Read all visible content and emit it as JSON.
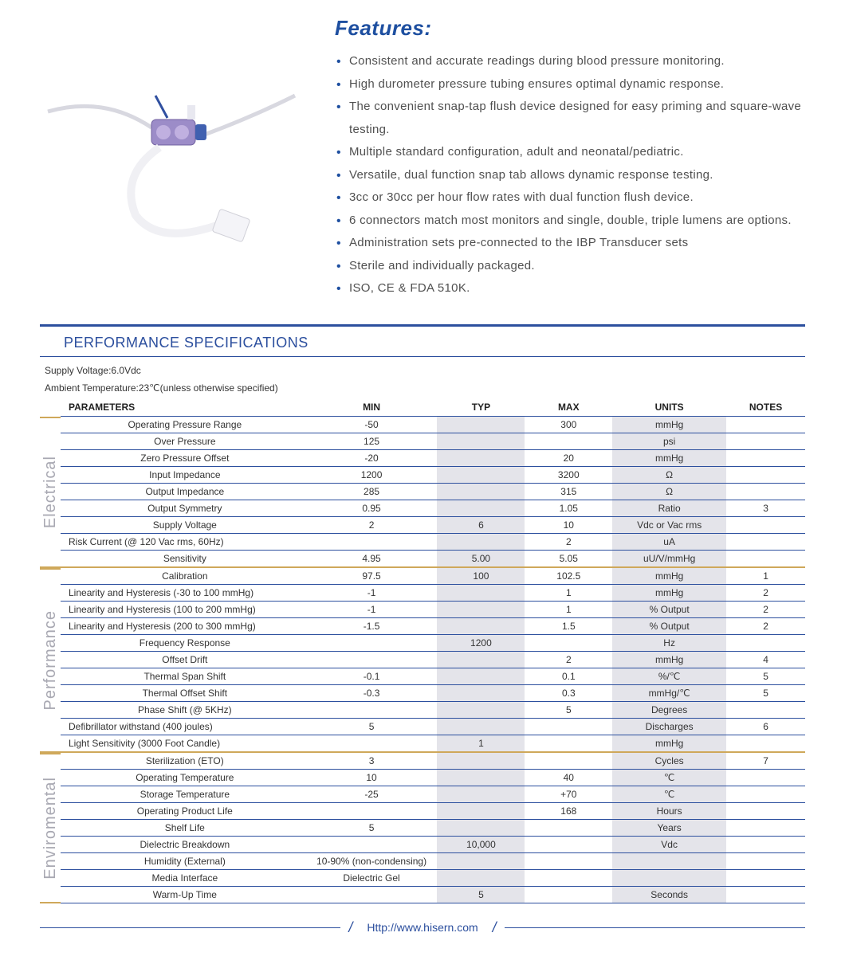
{
  "features": {
    "title": "Features:",
    "items": [
      "Consistent and accurate readings during blood pressure monitoring.",
      "High durometer pressure tubing ensures optimal dynamic response.",
      "The convenient snap-tap flush device designed for easy priming and square-wave testing.",
      "Multiple standard configuration, adult and neonatal/pediatric.",
      "Versatile, dual function snap tab allows dynamic response testing.",
      "3cc or 30cc per hour flow rates with dual function flush device.",
      "6 connectors match most monitors and single, double, triple lumens are options.",
      "Administration sets pre-connected to the IBP Transducer sets",
      "Sterile and individually packaged.",
      "ISO, CE & FDA 510K."
    ]
  },
  "spec": {
    "title": "PERFORMANCE SPECIFICATIONS",
    "meta1": "Supply Voltage:6.0Vdc",
    "meta2": "Ambient Temperature:23℃(unless otherwise specified)",
    "columns": [
      "PARAMETERS",
      "MIN",
      "TYP",
      "MAX",
      "UNITS",
      "NOTES"
    ],
    "groups": [
      {
        "label": "Electrical",
        "rows": [
          {
            "p": "Operating Pressure Range",
            "min": "-50",
            "typ": "",
            "max": "300",
            "u": "mmHg",
            "n": ""
          },
          {
            "p": "Over  Pressure",
            "min": "125",
            "typ": "",
            "max": "",
            "u": "psi",
            "n": ""
          },
          {
            "p": "Zero Pressure Offset",
            "min": "-20",
            "typ": "",
            "max": "20",
            "u": "mmHg",
            "n": ""
          },
          {
            "p": "Input Impedance",
            "min": "1200",
            "typ": "",
            "max": "3200",
            "u": "Ω",
            "n": ""
          },
          {
            "p": "Output Impedance",
            "min": "285",
            "typ": "",
            "max": "315",
            "u": "Ω",
            "n": ""
          },
          {
            "p": "Output Symmetry",
            "min": "0.95",
            "typ": "",
            "max": "1.05",
            "u": "Ratio",
            "n": "3"
          },
          {
            "p": "Supply Voltage",
            "min": "2",
            "typ": "6",
            "max": "10",
            "u": "Vdc or Vac rms",
            "n": ""
          },
          {
            "p": "Risk Current (@ 120 Vac rms, 60Hz)",
            "min": "",
            "typ": "",
            "max": "2",
            "u": "uA",
            "n": "",
            "la": true
          },
          {
            "p": "Sensitivity",
            "min": "4.95",
            "typ": "5.00",
            "max": "5.05",
            "u": "uU/V/mmHg",
            "n": ""
          }
        ]
      },
      {
        "label": "Performance",
        "rows": [
          {
            "p": "Calibration",
            "min": "97.5",
            "typ": "100",
            "max": "102.5",
            "u": "mmHg",
            "n": "1"
          },
          {
            "p": "Linearity and Hysteresis (-30 to 100 mmHg)",
            "min": "-1",
            "typ": "",
            "max": "1",
            "u": "mmHg",
            "n": "2",
            "la": true
          },
          {
            "p": "Linearity and Hysteresis (100 to 200 mmHg)",
            "min": "-1",
            "typ": "",
            "max": "1",
            "u": "% Output",
            "n": "2",
            "la": true
          },
          {
            "p": "Linearity and Hysteresis (200 to 300 mmHg)",
            "min": "-1.5",
            "typ": "",
            "max": "1.5",
            "u": "% Output",
            "n": "2",
            "la": true
          },
          {
            "p": "Frequency Response",
            "min": "",
            "typ": "1200",
            "max": "",
            "u": "Hz",
            "n": ""
          },
          {
            "p": "Offset Drift",
            "min": "",
            "typ": "",
            "max": "2",
            "u": "mmHg",
            "n": "4"
          },
          {
            "p": "Thermal Span Shift",
            "min": "-0.1",
            "typ": "",
            "max": "0.1",
            "u": "%/℃",
            "n": "5"
          },
          {
            "p": "Thermal Offset Shift",
            "min": "-0.3",
            "typ": "",
            "max": "0.3",
            "u": "mmHg/℃",
            "n": "5"
          },
          {
            "p": "Phase Shift (@ 5KHz)",
            "min": "",
            "typ": "",
            "max": "5",
            "u": "Degrees",
            "n": ""
          },
          {
            "p": "Defibrillator withstand (400 joules)",
            "min": "5",
            "typ": "",
            "max": "",
            "u": "Discharges",
            "n": "6",
            "la": true
          },
          {
            "p": "Light Sensitivity (3000 Foot Candle)",
            "min": "",
            "typ": "1",
            "max": "",
            "u": "mmHg",
            "n": "",
            "la": true
          }
        ]
      },
      {
        "label": "Enviromental",
        "rows": [
          {
            "p": "Sterilization (ETO)",
            "min": "3",
            "typ": "",
            "max": "",
            "u": "Cycles",
            "n": "7"
          },
          {
            "p": "Operating Temperature",
            "min": "10",
            "typ": "",
            "max": "40",
            "u": "℃",
            "n": ""
          },
          {
            "p": "Storage Temperature",
            "min": "-25",
            "typ": "",
            "max": "+70",
            "u": "℃",
            "n": ""
          },
          {
            "p": "Operating Product Life",
            "min": "",
            "typ": "",
            "max": "168",
            "u": "Hours",
            "n": ""
          },
          {
            "p": "Shelf Life",
            "min": "5",
            "typ": "",
            "max": "",
            "u": "Years",
            "n": ""
          },
          {
            "p": "Dielectric Breakdown",
            "min": "",
            "typ": "10,000",
            "max": "",
            "u": "Vdc",
            "n": ""
          },
          {
            "p": "Humidity (External)",
            "min": "10-90% (non-condensing)",
            "typ": "",
            "max": "",
            "u": "",
            "n": ""
          },
          {
            "p": "Media Interface",
            "min": "Dielectric Gel",
            "typ": "",
            "max": "",
            "u": "",
            "n": ""
          },
          {
            "p": "Warm-Up Time",
            "min": "",
            "typ": "5",
            "max": "",
            "u": "Seconds",
            "n": ""
          }
        ]
      }
    ]
  },
  "footer": {
    "url": "Http://www.hisern.com"
  },
  "colors": {
    "brand": "#1e4fa0",
    "rule": "#2c4f9e",
    "gold": "#cfa85a",
    "shade": "#e4e4ea",
    "label": "#a8a8b2"
  }
}
